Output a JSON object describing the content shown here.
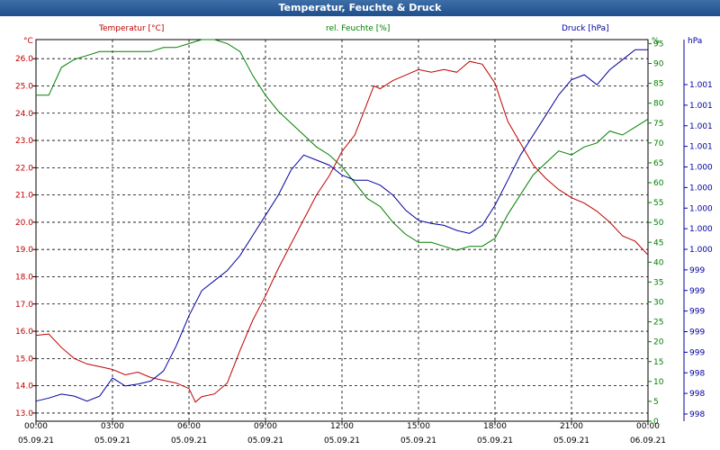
{
  "window": {
    "title": "Temperatur, Feuchte & Druck"
  },
  "colors": {
    "temperature": "#c00000",
    "humidity": "#008000",
    "pressure": "#0000a0",
    "grid": "#000000"
  },
  "chart_data": {
    "type": "line",
    "title": "Temperatur, Feuchte & Druck",
    "grid": true,
    "axes": {
      "temperature": {
        "unit": "°C",
        "label": "Temperatur [°C]",
        "range": [
          12.7,
          26.7
        ],
        "ticks": [
          "13.0",
          "14.0",
          "15.0",
          "16.0",
          "17.0",
          "18.0",
          "19.0",
          "20.0",
          "21.0",
          "22.0",
          "23.0",
          "24.0",
          "25.0",
          "26.0"
        ]
      },
      "humidity": {
        "unit": "%",
        "label": "rel. Feuchte [%]",
        "range": [
          0,
          96
        ],
        "ticks": [
          "0",
          "5",
          "10",
          "15",
          "20",
          "25",
          "30",
          "35",
          "40",
          "45",
          "50",
          "55",
          "60",
          "65",
          "70",
          "75",
          "80",
          "85",
          "90",
          "95"
        ]
      },
      "pressure": {
        "unit": "hPa",
        "label": "Druck [hPa]",
        "range": [
          997.55,
          1001.35
        ],
        "ticks": [
          "998",
          "998",
          "998",
          "999",
          "999",
          "999",
          "999",
          "999",
          "1.000",
          "1.000",
          "1.000",
          "1.000",
          "1.000",
          "1.001",
          "1.001",
          "1.001",
          "1.001"
        ]
      },
      "x": {
        "ticks": [
          {
            "time": "00:00",
            "date": "05.09.21"
          },
          {
            "time": "03:00",
            "date": "05.09.21"
          },
          {
            "time": "06:00",
            "date": "05.09.21"
          },
          {
            "time": "09:00",
            "date": "05.09.21"
          },
          {
            "time": "12:00",
            "date": "05.09.21"
          },
          {
            "time": "15:00",
            "date": "05.09.21"
          },
          {
            "time": "18:00",
            "date": "05.09.21"
          },
          {
            "time": "21:00",
            "date": "05.09.21"
          },
          {
            "time": "00:00",
            "date": "06.09.21"
          }
        ]
      }
    },
    "series": [
      {
        "name": "Temperatur [°C]",
        "axis": "temperature",
        "hours": [
          0,
          0.5,
          1,
          1.5,
          2,
          2.5,
          3,
          3.5,
          4,
          4.5,
          5,
          5.5,
          6,
          6.25,
          6.5,
          7,
          7.5,
          8,
          8.5,
          9,
          9.5,
          10,
          10.5,
          11,
          11.5,
          12,
          12.5,
          13,
          13.25,
          13.5,
          14,
          14.5,
          15,
          15.5,
          16,
          16.5,
          17,
          17.5,
          18,
          18.5,
          19,
          19.5,
          20,
          20.5,
          21,
          21.5,
          22,
          22.5,
          23,
          23.5,
          24
        ],
        "values": [
          15.85,
          15.9,
          15.4,
          15.0,
          14.8,
          14.7,
          14.6,
          14.4,
          14.5,
          14.3,
          14.2,
          14.1,
          13.9,
          13.4,
          13.6,
          13.7,
          14.1,
          15.3,
          16.4,
          17.3,
          18.3,
          19.2,
          20.1,
          21.0,
          21.7,
          22.6,
          23.2,
          24.4,
          25.0,
          24.9,
          25.2,
          25.4,
          25.6,
          25.5,
          25.6,
          25.5,
          25.9,
          25.8,
          25.1,
          23.7,
          22.9,
          22.1,
          21.6,
          21.2,
          20.9,
          20.7,
          20.4,
          20.0,
          19.5,
          19.3,
          18.8
        ]
      },
      {
        "name": "rel. Feuchte [%]",
        "axis": "humidity",
        "hours": [
          0,
          0.5,
          1,
          1.5,
          2,
          2.5,
          3,
          3.5,
          4,
          4.5,
          5,
          5.5,
          6,
          6.5,
          7,
          7.5,
          8,
          8.5,
          9,
          9.5,
          10,
          10.5,
          11,
          11.5,
          12,
          12.5,
          13,
          13.5,
          14,
          14.5,
          15,
          15.5,
          16,
          16.5,
          17,
          17.5,
          18,
          18.5,
          19,
          19.5,
          20,
          20.5,
          21,
          21.5,
          22,
          22.5,
          23,
          23.5,
          24
        ],
        "values": [
          82,
          82,
          89,
          91,
          92,
          93,
          93,
          93,
          93,
          93,
          94,
          94,
          95,
          96,
          96,
          95,
          93,
          87,
          82,
          78,
          75,
          72,
          69,
          67,
          64,
          60,
          56,
          54,
          50,
          47,
          45,
          45,
          44,
          43,
          44,
          44,
          46,
          52,
          57,
          62,
          65,
          68,
          67,
          69,
          70,
          73,
          72,
          74,
          76
        ]
      },
      {
        "name": "Druck [hPa]",
        "axis": "pressure",
        "hours": [
          0,
          0.5,
          1,
          1.5,
          2,
          2.5,
          3,
          3.5,
          4,
          4.5,
          5,
          5.5,
          6,
          6.5,
          7,
          7.5,
          8,
          8.5,
          9,
          9.5,
          10,
          10.5,
          11,
          11.5,
          12,
          12.5,
          13,
          13.5,
          14,
          14.5,
          15,
          15.5,
          16,
          16.5,
          17,
          17.5,
          18,
          18.5,
          19,
          19.5,
          20,
          20.5,
          21,
          21.5,
          22,
          22.5,
          23,
          23.5,
          24
        ],
        "values": [
          997.75,
          997.78,
          997.82,
          997.8,
          997.75,
          997.8,
          997.98,
          997.9,
          997.92,
          997.95,
          998.05,
          998.3,
          998.6,
          998.85,
          998.95,
          999.05,
          999.2,
          999.4,
          999.6,
          999.8,
          1000.05,
          1000.2,
          1000.15,
          1000.1,
          1000.0,
          999.95,
          999.95,
          999.9,
          999.8,
          999.65,
          999.55,
          999.52,
          999.5,
          999.45,
          999.42,
          999.5,
          999.7,
          999.95,
          1000.2,
          1000.4,
          1000.6,
          1000.8,
          1000.95,
          1001.0,
          1000.9,
          1001.05,
          1001.15,
          1001.25,
          1001.25
        ]
      }
    ]
  }
}
